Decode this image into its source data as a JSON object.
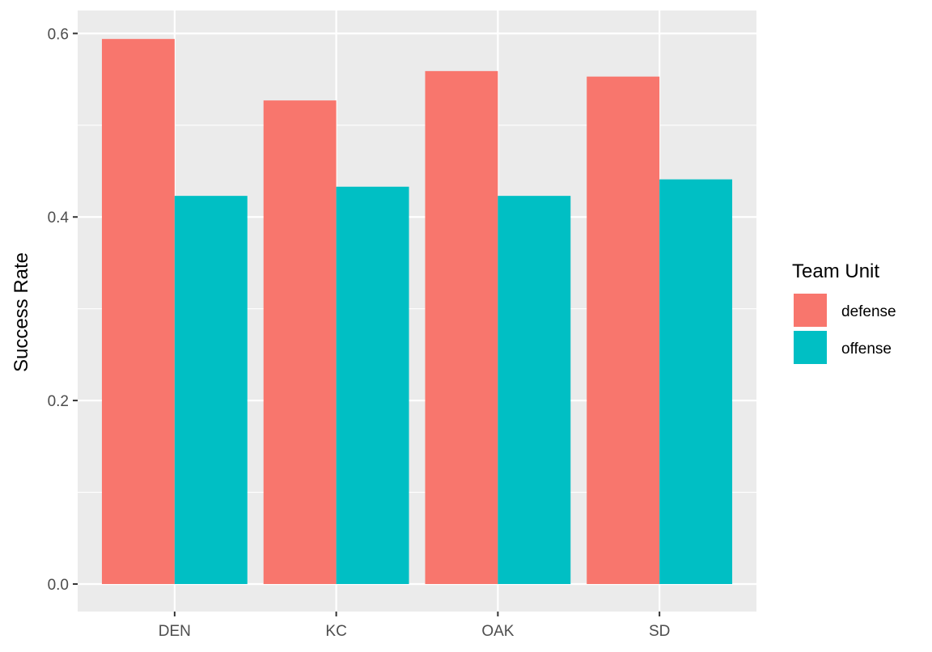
{
  "chart_data": {
    "type": "bar",
    "categories": [
      "DEN",
      "KC",
      "OAK",
      "SD"
    ],
    "series": [
      {
        "name": "defense",
        "color": "#F8766D",
        "values": [
          0.594,
          0.527,
          0.559,
          0.553
        ]
      },
      {
        "name": "offense",
        "color": "#00BFC4",
        "values": [
          0.423,
          0.433,
          0.423,
          0.441
        ]
      }
    ],
    "title": "",
    "xlabel": "",
    "ylabel": "Success Rate",
    "ylim": [
      -0.03,
      0.625
    ],
    "yticks": [
      0.0,
      0.2,
      0.4,
      0.6
    ],
    "ytick_labels": [
      "0.0",
      "0.2",
      "0.4",
      "0.6"
    ],
    "legend": {
      "title": "Team Unit",
      "position": "right"
    },
    "grid": true,
    "colors": {
      "panel_background": "#EBEBEB",
      "grid": "#FFFFFF",
      "tick_text": "#4D4D4D",
      "tick_mark": "#333333"
    }
  }
}
